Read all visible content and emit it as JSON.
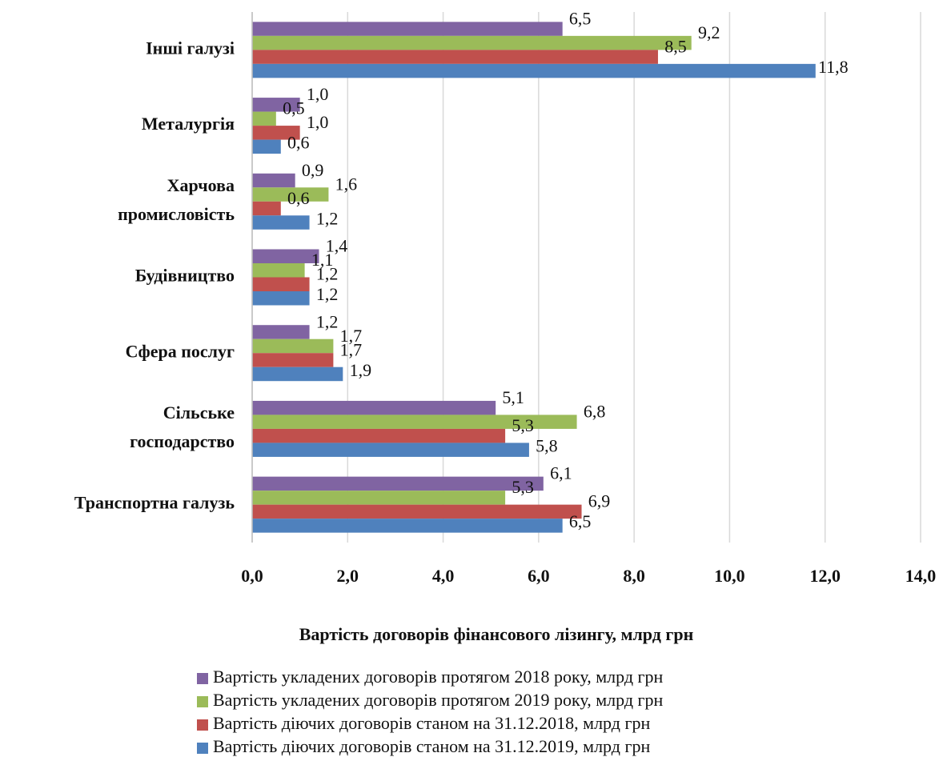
{
  "chart_data": {
    "type": "hbar",
    "xlabel": "Вартість договорів фінансового лізингу, млрд грн",
    "categories": [
      "Інші галузі",
      "Металургія",
      "Харчова\nпромисловість",
      "Будівництво",
      "Сфера послуг",
      "Сільське\nгосподарство",
      "Транспортна галузь"
    ],
    "series": [
      {
        "name": "Вартість укладених договорів протягом 2018 року, млрд грн",
        "color": "#8064a2",
        "values": [
          6.5,
          1.0,
          0.9,
          1.4,
          1.2,
          5.1,
          6.1
        ],
        "value_labels": [
          "6,5",
          "1,0",
          "0,9",
          "1,4",
          "1,2",
          "5,1",
          "6,1"
        ]
      },
      {
        "name": "Вартість укладених договорів протягом 2019 року, млрд грн",
        "color": "#9bbb59",
        "values": [
          9.2,
          0.5,
          1.6,
          1.1,
          1.7,
          6.8,
          5.3
        ],
        "value_labels": [
          "9,2",
          "0,5",
          "1,6",
          "1,1",
          "1,7",
          "6,8",
          "5,3"
        ]
      },
      {
        "name": "Вартість діючих договорів станом на 31.12.2018, млрд грн",
        "color": "#c0504d",
        "values": [
          8.5,
          1.0,
          0.6,
          1.2,
          1.7,
          5.3,
          6.9
        ],
        "value_labels": [
          "8,5",
          "1,0",
          "0,6",
          "1,2",
          "1,7",
          "5,3",
          "6,9"
        ]
      },
      {
        "name": "Вартість діючих договорів станом на 31.12.2019, млрд грн",
        "color": "#4f81bd",
        "values": [
          11.8,
          0.6,
          1.2,
          1.2,
          1.9,
          5.8,
          6.5
        ],
        "value_labels": [
          "11,8",
          "0,6",
          "1,2",
          "1,2",
          "1,9",
          "5,8",
          "6,5"
        ]
      }
    ],
    "xlim": [
      0,
      14
    ],
    "xticks": [
      {
        "value": 0,
        "label": "0,0"
      },
      {
        "value": 2,
        "label": "2,0"
      },
      {
        "value": 4,
        "label": "4,0"
      },
      {
        "value": 6,
        "label": "6,0"
      },
      {
        "value": 8,
        "label": "8,0"
      },
      {
        "value": 10,
        "label": "10,0"
      },
      {
        "value": 12,
        "label": "12,0"
      },
      {
        "value": 14,
        "label": "14,0"
      }
    ],
    "grid": true,
    "legend": "bottom"
  }
}
